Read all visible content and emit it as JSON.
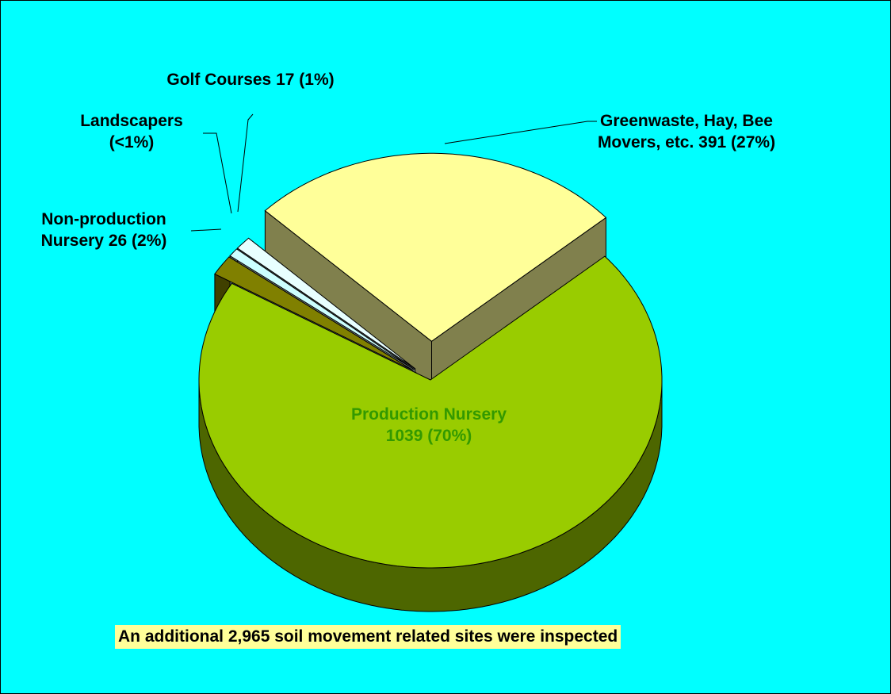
{
  "chart_data": {
    "type": "pie",
    "categories": [
      "Greenwaste, Hay, Bee Movers, etc.",
      "Production Nursery",
      "Non-production Nursery",
      "Landscapers",
      "Golf Courses"
    ],
    "values": [
      391,
      1039,
      26,
      11,
      17
    ],
    "value_labels": [
      "391 (27%)",
      "1039 (70%)",
      "26 (2%)",
      "(<1%)",
      "17 (1%)"
    ],
    "colors": [
      "#ffff99",
      "#99cc00",
      "#808000",
      "#ccffff",
      "#e8ffff"
    ],
    "annotation": "An additional 2,965 soil movement related sites were inspected"
  }
}
